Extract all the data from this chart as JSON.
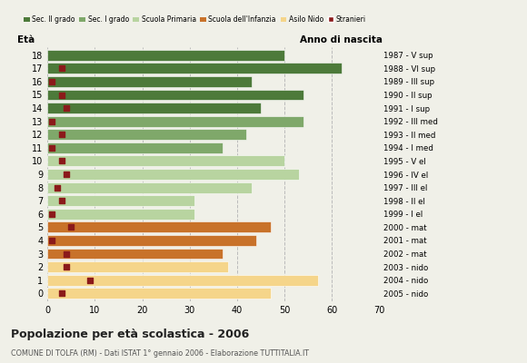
{
  "ages": [
    18,
    17,
    16,
    15,
    14,
    13,
    12,
    11,
    10,
    9,
    8,
    7,
    6,
    5,
    4,
    3,
    2,
    1,
    0
  ],
  "bar_values": [
    50,
    62,
    43,
    54,
    45,
    54,
    42,
    37,
    50,
    53,
    43,
    31,
    31,
    47,
    44,
    37,
    38,
    57,
    47
  ],
  "bar_colors": [
    "#4d7a3a",
    "#4d7a3a",
    "#4d7a3a",
    "#4d7a3a",
    "#4d7a3a",
    "#7fa86a",
    "#7fa86a",
    "#7fa86a",
    "#b8d4a0",
    "#b8d4a0",
    "#b8d4a0",
    "#b8d4a0",
    "#b8d4a0",
    "#c8722a",
    "#c8722a",
    "#c8722a",
    "#f5d58a",
    "#f5d58a",
    "#f5d58a"
  ],
  "stranieri_values": [
    0,
    3,
    1,
    3,
    4,
    1,
    3,
    1,
    3,
    4,
    2,
    3,
    1,
    5,
    1,
    4,
    4,
    9,
    3
  ],
  "right_labels": [
    "1987 - V sup",
    "1988 - VI sup",
    "1989 - III sup",
    "1990 - II sup",
    "1991 - I sup",
    "1992 - III med",
    "1993 - II med",
    "1994 - I med",
    "1995 - V el",
    "1996 - IV el",
    "1997 - III el",
    "1998 - II el",
    "1999 - I el",
    "2000 - mat",
    "2001 - mat",
    "2002 - mat",
    "2003 - nido",
    "2004 - nido",
    "2005 - nido"
  ],
  "legend_labels": [
    "Sec. II grado",
    "Sec. I grado",
    "Scuola Primaria",
    "Scuola dell'Infanzia",
    "Asilo Nido",
    "Stranieri"
  ],
  "legend_colors": [
    "#4d7a3a",
    "#7fa86a",
    "#b8d4a0",
    "#c8722a",
    "#f5d58a",
    "#9b1c1c"
  ],
  "title": "Popolazione per età scolastica - 2006",
  "subtitle": "COMUNE DI TOLFA (RM) - Dati ISTAT 1° gennaio 2006 - Elaborazione TUTTITALIA.IT",
  "xlabel_left": "Età",
  "xlabel_right": "Anno di nascita",
  "xlim": [
    0,
    70
  ],
  "xticks": [
    0,
    10,
    20,
    30,
    40,
    50,
    60,
    70
  ],
  "background_color": "#f0f0e8",
  "bar_height": 0.82,
  "stranieri_color": "#8b1a1a",
  "stranieri_size": 18,
  "grid_color": "#bbbbbb"
}
